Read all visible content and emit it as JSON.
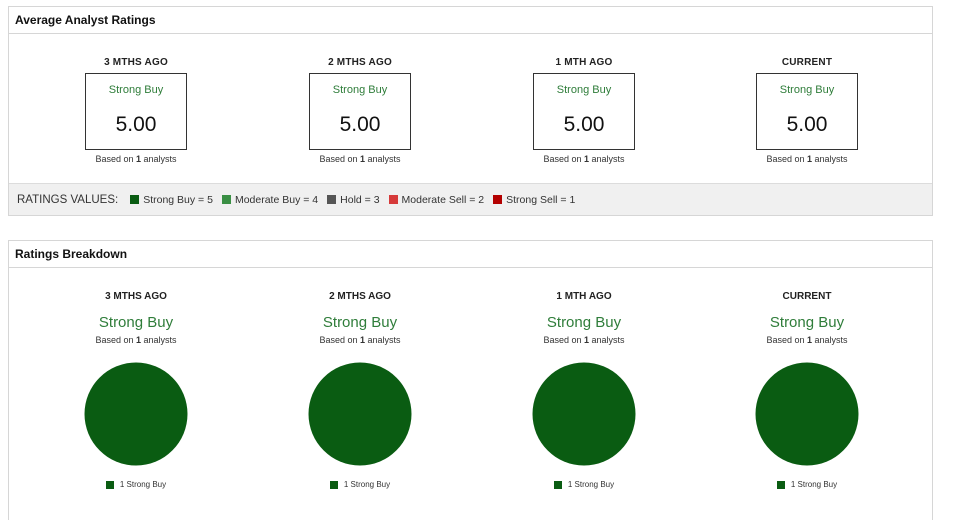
{
  "avg_panel": {
    "title": "Average Analyst Ratings",
    "columns": [
      {
        "period": "3 MTHS AGO",
        "rating_label": "Strong Buy",
        "score": "5.00",
        "based_prefix": "Based on ",
        "count": "1",
        "based_suffix": " analysts"
      },
      {
        "period": "2 MTHS AGO",
        "rating_label": "Strong Buy",
        "score": "5.00",
        "based_prefix": "Based on ",
        "count": "1",
        "based_suffix": " analysts"
      },
      {
        "period": "1 MTH AGO",
        "rating_label": "Strong Buy",
        "score": "5.00",
        "based_prefix": "Based on ",
        "count": "1",
        "based_suffix": " analysts"
      },
      {
        "period": "CURRENT",
        "rating_label": "Strong Buy",
        "score": "5.00",
        "based_prefix": "Based on ",
        "count": "1",
        "based_suffix": " analysts"
      }
    ],
    "legend": {
      "title": "RATINGS VALUES:",
      "items": [
        {
          "label": "Strong Buy = 5",
          "color": "#0a5c12"
        },
        {
          "label": "Moderate Buy = 4",
          "color": "#3a8f44"
        },
        {
          "label": "Hold = 3",
          "color": "#555555"
        },
        {
          "label": "Moderate Sell = 2",
          "color": "#d63a3a"
        },
        {
          "label": "Strong Sell = 1",
          "color": "#b30000"
        }
      ]
    }
  },
  "breakdown_panel": {
    "title": "Ratings Breakdown",
    "columns": [
      {
        "period": "3 MTHS AGO",
        "rating_label": "Strong Buy",
        "based_prefix": "Based on ",
        "count": "1",
        "based_suffix": " analysts",
        "legend_label": "1 Strong Buy"
      },
      {
        "period": "2 MTHS AGO",
        "rating_label": "Strong Buy",
        "based_prefix": "Based on ",
        "count": "1",
        "based_suffix": " analysts",
        "legend_label": "1 Strong Buy"
      },
      {
        "period": "1 MTH AGO",
        "rating_label": "Strong Buy",
        "based_prefix": "Based on ",
        "count": "1",
        "based_suffix": " analysts",
        "legend_label": "1 Strong Buy"
      },
      {
        "period": "CURRENT",
        "rating_label": "Strong Buy",
        "based_prefix": "Based on ",
        "count": "1",
        "based_suffix": " analysts",
        "legend_label": "1 Strong Buy"
      }
    ]
  },
  "chart_data": [
    {
      "type": "pie",
      "categories": [
        "Strong Buy"
      ],
      "values": [
        1
      ],
      "colors": [
        "#0a5c12"
      ]
    },
    {
      "type": "pie",
      "categories": [
        "Strong Buy"
      ],
      "values": [
        1
      ],
      "colors": [
        "#0a5c12"
      ]
    },
    {
      "type": "pie",
      "categories": [
        "Strong Buy"
      ],
      "values": [
        1
      ],
      "colors": [
        "#0a5c12"
      ]
    },
    {
      "type": "pie",
      "categories": [
        "Strong Buy"
      ],
      "values": [
        1
      ],
      "colors": [
        "#0a5c12"
      ]
    }
  ]
}
